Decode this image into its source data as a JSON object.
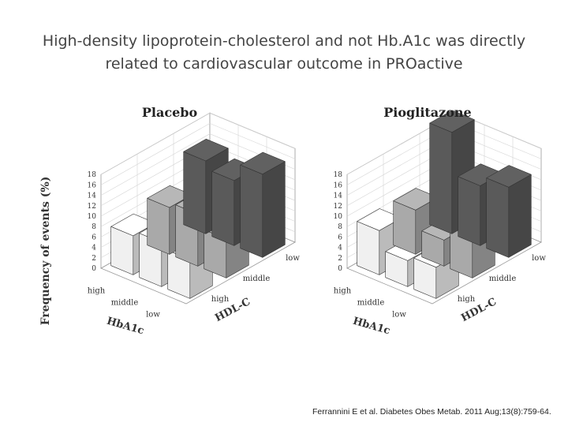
{
  "slide": {
    "title_line1": "High-density lipoprotein-cholesterol and not Hb.A1c was directly",
    "title_line2": "related to cardiovascular outcome in PROactive",
    "citation": "Ferrannini E et al. Diabetes Obes Metab. 2011 Aug;13(8):759-64."
  },
  "chart_data": [
    {
      "type": "bar3d",
      "title": "Placebo",
      "ylabel": "Frequency of events (%)",
      "x_axis_label": "HbA1c",
      "z_axis_label": "HDL-C",
      "x_categories": [
        "high",
        "middle",
        "low"
      ],
      "z_categories": [
        "low",
        "middle",
        "high"
      ],
      "yticks": [
        0,
        2,
        4,
        6,
        8,
        10,
        12,
        14,
        16,
        18
      ],
      "ylim": [
        0,
        18
      ],
      "colors": {
        "high HDL-C": "#f0f0f0",
        "middle HDL-C": "#a9a9a9",
        "low HDL-C": "#5a5a5a"
      },
      "series": [
        {
          "name": "low",
          "values": [
            14,
            12.5,
            16
          ]
        },
        {
          "name": "middle",
          "values": [
            9,
            10,
            7.5
          ]
        },
        {
          "name": "high",
          "values": [
            7.5,
            8.5,
            7.5
          ]
        }
      ]
    },
    {
      "type": "bar3d",
      "title": "Pioglitazone",
      "x_axis_label": "HbA1c",
      "z_axis_label": "HDL-C",
      "x_categories": [
        "high",
        "middle",
        "low"
      ],
      "z_categories": [
        "low",
        "middle",
        "high"
      ],
      "yticks": [
        0,
        2,
        4,
        6,
        8,
        10,
        12,
        14,
        16,
        18
      ],
      "ylim": [
        0,
        18
      ],
      "colors": {
        "high HDL-C": "#f0f0f0",
        "middle HDL-C": "#a9a9a9",
        "low HDL-C": "#5a5a5a"
      },
      "series": [
        {
          "name": "low",
          "values": [
            19.5,
            11.5,
            13.5
          ]
        },
        {
          "name": "middle",
          "values": [
            8.5,
            5,
            8
          ]
        },
        {
          "name": "high",
          "values": [
            8.5,
            5,
            6
          ]
        }
      ]
    }
  ]
}
